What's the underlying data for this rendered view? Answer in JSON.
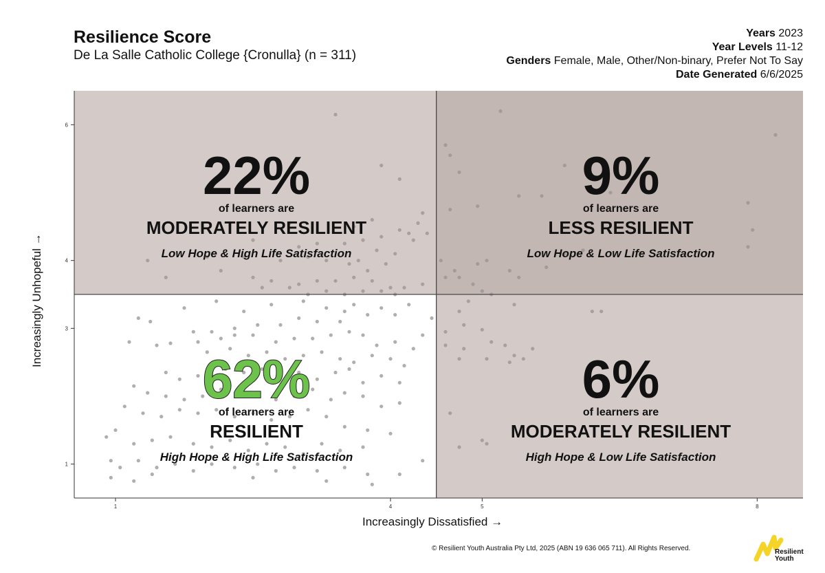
{
  "header": {
    "title": "Resilience Score",
    "subtitle": "De La Salle Catholic College {Cronulla} (n = 311)",
    "meta": [
      {
        "label": "Years",
        "value": "2023"
      },
      {
        "label": "Year Levels",
        "value": "11-12"
      },
      {
        "label": "Genders",
        "value": "Female, Male, Other/Non-binary, Prefer Not To Say"
      },
      {
        "label": "Date Generated",
        "value": "6/6/2025"
      }
    ]
  },
  "footer": {
    "copyright": "© Resilient Youth Australia Pty Ltd, 2025 (ABN 19 636 065 711). All Rights Reserved.",
    "logo_line1": "Resilient",
    "logo_line2": "Youth"
  },
  "colors": {
    "q_top_left": "#d4cbc9",
    "q_top_right": "#c3b7b3",
    "q_bottom_left": "#ffffff",
    "q_bottom_right": "#d4cbc9",
    "accent_green": "#6cc24a",
    "logo_yellow": "#f5d327"
  },
  "chart_data": {
    "type": "scatter",
    "title": "Resilience Score",
    "xlabel": "Increasingly Dissatisfied →",
    "ylabel": "Increasingly Unhopeful →",
    "xlim": [
      0.55,
      8.5
    ],
    "ylim": [
      0.5,
      6.5
    ],
    "x_ticks": [
      1,
      4,
      5,
      8
    ],
    "y_ticks": [
      1,
      3,
      4,
      6
    ],
    "x_threshold": 4.5,
    "y_threshold": 3.5,
    "quadrants": [
      {
        "position": "top-left",
        "percent": "22%",
        "prefix": "of learners are",
        "label": "MODERATELY RESILIENT",
        "description": "Low Hope & High Life Satisfaction"
      },
      {
        "position": "top-right",
        "percent": "9%",
        "prefix": "of learners are",
        "label": "LESS RESILIENT",
        "description": "Low Hope & Low Life Satisfaction"
      },
      {
        "position": "bottom-left",
        "percent": "62%",
        "prefix": "of learners are",
        "label": "RESILIENT",
        "description": "High Hope & High Life Satisfaction"
      },
      {
        "position": "bottom-right",
        "percent": "6%",
        "prefix": "of learners are",
        "label": "MODERATELY RESILIENT",
        "description": "High Hope & Low Life Satisfaction"
      }
    ],
    "points": [
      [
        3.4,
        6.15
      ],
      [
        5.2,
        6.2
      ],
      [
        8.2,
        5.85
      ],
      [
        4.65,
        5.55
      ],
      [
        4.75,
        5.3
      ],
      [
        4.6,
        5.7
      ],
      [
        3.9,
        5.4
      ],
      [
        4.1,
        5.2
      ],
      [
        5.9,
        5.4
      ],
      [
        6.4,
        5.0
      ],
      [
        4.95,
        4.8
      ],
      [
        4.65,
        4.75
      ],
      [
        5.4,
        4.95
      ],
      [
        5.65,
        4.95
      ],
      [
        7.9,
        4.85
      ],
      [
        7.95,
        4.45
      ],
      [
        4.35,
        4.7
      ],
      [
        4.3,
        4.55
      ],
      [
        4.1,
        4.45
      ],
      [
        4.2,
        4.4
      ],
      [
        4.4,
        4.4
      ],
      [
        3.6,
        4.5
      ],
      [
        3.8,
        4.6
      ],
      [
        2.9,
        4.55
      ],
      [
        2.5,
        4.3
      ],
      [
        3.2,
        4.25
      ],
      [
        3.5,
        4.25
      ],
      [
        3.0,
        4.2
      ],
      [
        3.7,
        4.3
      ],
      [
        3.9,
        4.35
      ],
      [
        3.85,
        4.15
      ],
      [
        3.65,
        4.0
      ],
      [
        2.0,
        4.05
      ],
      [
        2.4,
        4.05
      ],
      [
        2.8,
        4.0
      ],
      [
        3.1,
        4.05
      ],
      [
        3.3,
        4.0
      ],
      [
        3.55,
        3.95
      ],
      [
        3.75,
        3.85
      ],
      [
        3.95,
        3.95
      ],
      [
        4.05,
        4.1
      ],
      [
        4.25,
        4.3
      ],
      [
        1.35,
        4.0
      ],
      [
        1.55,
        3.75
      ],
      [
        2.15,
        3.85
      ],
      [
        2.5,
        3.75
      ],
      [
        2.7,
        3.7
      ],
      [
        3.0,
        3.65
      ],
      [
        3.2,
        3.7
      ],
      [
        3.4,
        3.7
      ],
      [
        3.6,
        3.75
      ],
      [
        3.8,
        3.7
      ],
      [
        4.0,
        3.6
      ],
      [
        4.15,
        3.6
      ],
      [
        4.35,
        3.65
      ],
      [
        4.05,
        3.5
      ],
      [
        3.9,
        3.55
      ],
      [
        3.7,
        3.55
      ],
      [
        3.5,
        3.5
      ],
      [
        3.3,
        3.55
      ],
      [
        3.1,
        3.5
      ],
      [
        2.9,
        3.6
      ],
      [
        2.6,
        3.6
      ],
      [
        4.55,
        4.0
      ],
      [
        4.7,
        3.85
      ],
      [
        4.6,
        3.75
      ],
      [
        4.75,
        3.75
      ],
      [
        4.95,
        3.95
      ],
      [
        5.05,
        4.0
      ],
      [
        5.3,
        3.85
      ],
      [
        5.7,
        3.9
      ],
      [
        5.4,
        3.75
      ],
      [
        5.9,
        4.1
      ],
      [
        6.1,
        4.15
      ],
      [
        7.9,
        4.2
      ],
      [
        4.9,
        3.65
      ],
      [
        5.0,
        3.55
      ],
      [
        5.1,
        3.5
      ],
      [
        4.85,
        3.4
      ],
      [
        4.75,
        3.25
      ],
      [
        5.35,
        3.35
      ],
      [
        6.3,
        3.25
      ],
      [
        6.2,
        3.25
      ],
      [
        4.8,
        3.05
      ],
      [
        4.6,
        2.95
      ],
      [
        5.0,
        2.98
      ],
      [
        1.25,
        3.15
      ],
      [
        1.38,
        3.1
      ],
      [
        1.75,
        3.3
      ],
      [
        2.1,
        3.4
      ],
      [
        2.4,
        3.25
      ],
      [
        2.7,
        3.35
      ],
      [
        3.05,
        3.4
      ],
      [
        3.3,
        3.3
      ],
      [
        3.5,
        3.25
      ],
      [
        3.6,
        3.35
      ],
      [
        3.75,
        3.2
      ],
      [
        3.9,
        3.3
      ],
      [
        4.05,
        3.2
      ],
      [
        4.2,
        3.35
      ],
      [
        4.45,
        3.15
      ],
      [
        3.45,
        3.1
      ],
      [
        3.2,
        3.1
      ],
      [
        3.0,
        3.15
      ],
      [
        2.8,
        3.05
      ],
      [
        2.55,
        3.05
      ],
      [
        2.3,
        3.0
      ],
      [
        2.05,
        2.95
      ],
      [
        1.85,
        2.95
      ],
      [
        1.9,
        2.8
      ],
      [
        2.15,
        2.85
      ],
      [
        2.3,
        2.9
      ],
      [
        2.5,
        2.9
      ],
      [
        2.75,
        2.8
      ],
      [
        2.95,
        2.85
      ],
      [
        3.15,
        2.85
      ],
      [
        3.35,
        2.9
      ],
      [
        3.55,
        2.95
      ],
      [
        3.7,
        2.9
      ],
      [
        3.85,
        2.75
      ],
      [
        4.05,
        2.8
      ],
      [
        4.25,
        2.7
      ],
      [
        4.35,
        2.9
      ],
      [
        1.15,
        2.8
      ],
      [
        1.45,
        2.75
      ],
      [
        1.6,
        2.78
      ],
      [
        2.0,
        2.65
      ],
      [
        2.25,
        2.7
      ],
      [
        2.45,
        2.6
      ],
      [
        2.65,
        2.65
      ],
      [
        2.85,
        2.55
      ],
      [
        3.05,
        2.6
      ],
      [
        3.25,
        2.65
      ],
      [
        3.45,
        2.55
      ],
      [
        3.6,
        2.5
      ],
      [
        3.8,
        2.6
      ],
      [
        4.0,
        2.55
      ],
      [
        4.15,
        2.45
      ],
      [
        1.55,
        2.35
      ],
      [
        1.7,
        2.25
      ],
      [
        1.9,
        2.3
      ],
      [
        2.05,
        2.3
      ],
      [
        2.2,
        2.4
      ],
      [
        2.4,
        2.35
      ],
      [
        2.6,
        2.4
      ],
      [
        2.8,
        2.3
      ],
      [
        3.0,
        2.35
      ],
      [
        3.2,
        2.25
      ],
      [
        3.4,
        2.35
      ],
      [
        3.55,
        2.4
      ],
      [
        3.7,
        2.2
      ],
      [
        3.9,
        2.3
      ],
      [
        4.1,
        2.2
      ],
      [
        1.2,
        2.15
      ],
      [
        1.35,
        2.05
      ],
      [
        1.55,
        2.0
      ],
      [
        1.75,
        1.95
      ],
      [
        1.95,
        2.0
      ],
      [
        2.15,
        2.1
      ],
      [
        2.35,
        2.0
      ],
      [
        2.55,
        2.05
      ],
      [
        2.75,
        1.95
      ],
      [
        2.95,
        2.0
      ],
      [
        3.15,
        2.1
      ],
      [
        3.35,
        1.95
      ],
      [
        3.5,
        2.05
      ],
      [
        3.7,
        2.0
      ],
      [
        3.9,
        1.85
      ],
      [
        4.1,
        1.9
      ],
      [
        1.1,
        1.85
      ],
      [
        1.3,
        1.75
      ],
      [
        1.5,
        1.7
      ],
      [
        1.7,
        1.8
      ],
      [
        1.9,
        1.75
      ],
      [
        2.1,
        1.8
      ],
      [
        2.3,
        1.7
      ],
      [
        2.5,
        1.75
      ],
      [
        2.7,
        1.65
      ],
      [
        2.9,
        1.7
      ],
      [
        3.1,
        1.8
      ],
      [
        3.3,
        1.7
      ],
      [
        3.5,
        1.55
      ],
      [
        3.75,
        1.5
      ],
      [
        4.0,
        1.45
      ],
      [
        0.9,
        1.4
      ],
      [
        1.0,
        1.5
      ],
      [
        1.2,
        1.3
      ],
      [
        1.4,
        1.35
      ],
      [
        1.6,
        1.4
      ],
      [
        1.85,
        1.3
      ],
      [
        2.05,
        1.25
      ],
      [
        2.25,
        1.35
      ],
      [
        2.45,
        1.2
      ],
      [
        2.65,
        1.3
      ],
      [
        2.85,
        1.25
      ],
      [
        3.05,
        1.15
      ],
      [
        3.25,
        1.3
      ],
      [
        3.45,
        1.2
      ],
      [
        3.7,
        1.25
      ],
      [
        0.95,
        1.05
      ],
      [
        1.05,
        0.95
      ],
      [
        1.25,
        1.05
      ],
      [
        1.45,
        0.95
      ],
      [
        1.65,
        1.0
      ],
      [
        1.85,
        0.9
      ],
      [
        2.05,
        1.0
      ],
      [
        2.3,
        0.95
      ],
      [
        2.55,
        1.0
      ],
      [
        2.75,
        0.9
      ],
      [
        2.95,
        0.95
      ],
      [
        3.2,
        0.9
      ],
      [
        3.5,
        0.95
      ],
      [
        3.75,
        0.85
      ],
      [
        4.1,
        0.85
      ],
      [
        4.35,
        1.05
      ],
      [
        0.95,
        0.8
      ],
      [
        1.2,
        0.75
      ],
      [
        1.4,
        0.85
      ],
      [
        2.5,
        0.8
      ],
      [
        3.3,
        0.75
      ],
      [
        3.8,
        0.7
      ],
      [
        4.6,
        2.75
      ],
      [
        4.8,
        2.7
      ],
      [
        5.1,
        2.8
      ],
      [
        5.25,
        2.75
      ],
      [
        5.35,
        2.6
      ],
      [
        5.55,
        2.7
      ],
      [
        4.75,
        2.55
      ],
      [
        5.05,
        2.55
      ],
      [
        5.3,
        2.5
      ],
      [
        5.45,
        2.55
      ],
      [
        4.65,
        1.75
      ],
      [
        5.0,
        1.35
      ],
      [
        4.75,
        1.25
      ],
      [
        5.05,
        1.3
      ]
    ]
  }
}
